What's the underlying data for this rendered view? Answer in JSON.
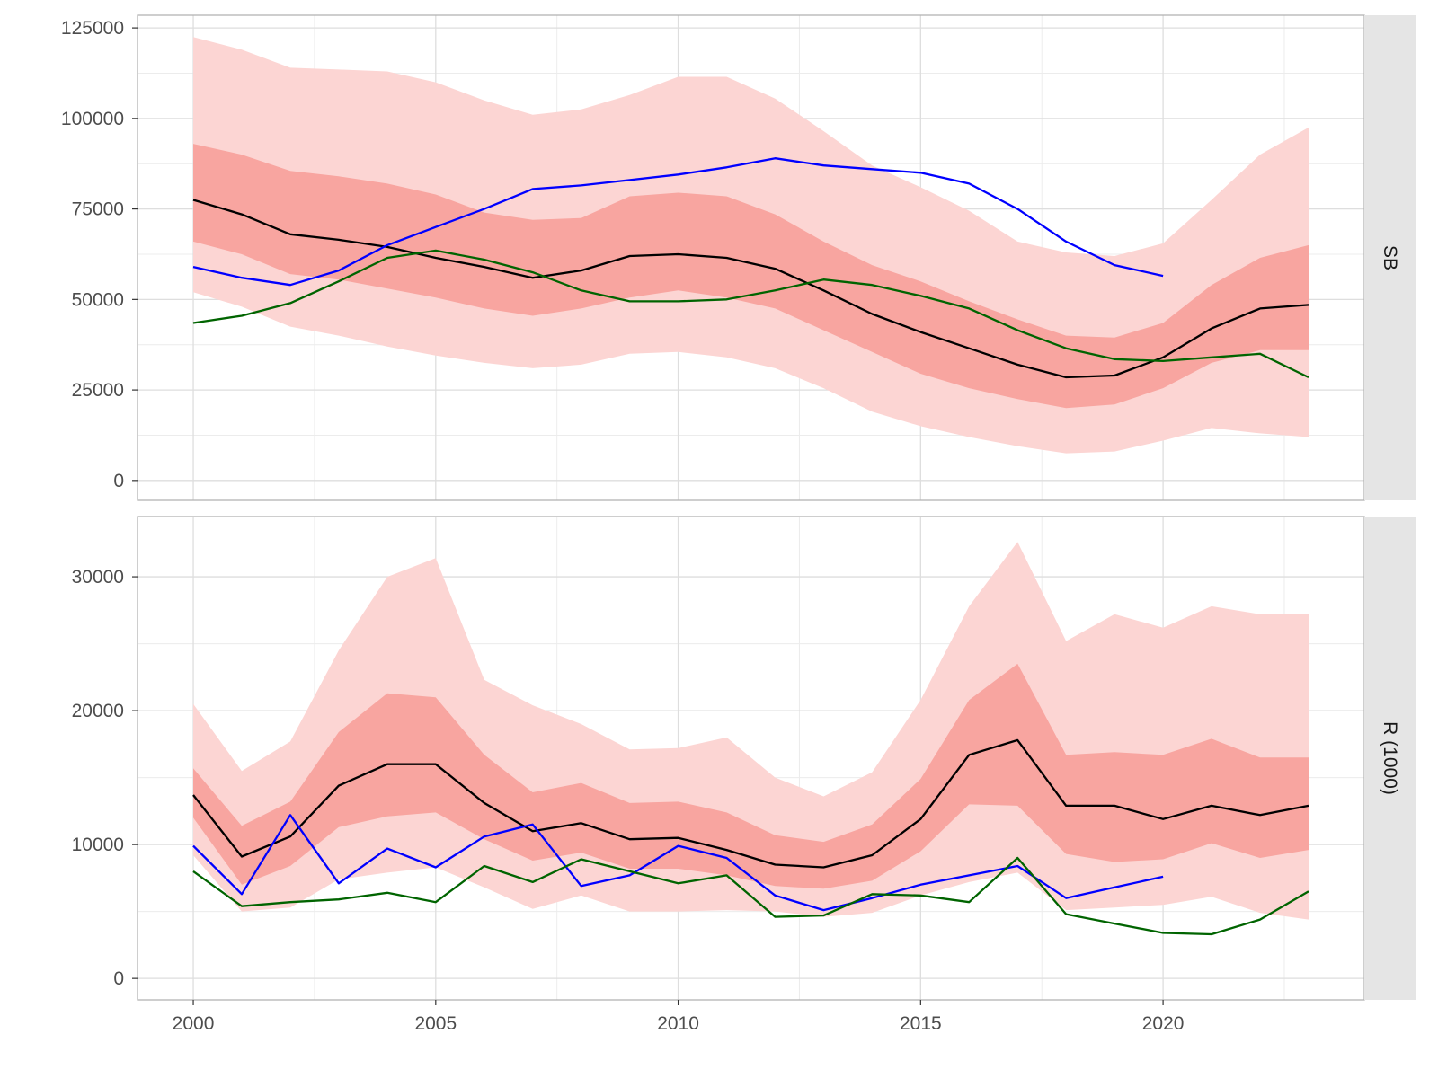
{
  "chart_data": {
    "type": "line",
    "layout": "faceted-vertical",
    "shared_x": {
      "xlim": [
        1998.85,
        2024.15
      ],
      "ticks": [
        2000,
        2005,
        2010,
        2015,
        2020
      ],
      "tick_labels": [
        "2000",
        "2005",
        "2010",
        "2015",
        "2020"
      ]
    },
    "colors": {
      "outer_band": "#fcd5d3",
      "inner_band": "#f8a5a0",
      "median": "#000000",
      "blue_series": "#0000ff",
      "green_series": "#006400",
      "grid": "#dedede",
      "strip_bg": "#e5e5e5",
      "panel_border": "#b3b3b3"
    },
    "panels": [
      {
        "strip_label": "SB",
        "ylim": [
          -5500,
          128500
        ],
        "y_ticks": [
          0,
          25000,
          50000,
          75000,
          100000,
          125000
        ],
        "y_tick_labels": [
          "0",
          "25000",
          "50000",
          "75000",
          "100000",
          "125000"
        ],
        "x": [
          2000,
          2001,
          2002,
          2003,
          2004,
          2005,
          2006,
          2007,
          2008,
          2009,
          2010,
          2011,
          2012,
          2013,
          2014,
          2015,
          2016,
          2017,
          2018,
          2019,
          2020,
          2021,
          2022,
          2023
        ],
        "outer_lower": [
          52000,
          48000,
          42500,
          40000,
          37000,
          34500,
          32500,
          31000,
          32000,
          35000,
          35500,
          34000,
          31000,
          25500,
          19000,
          15000,
          12000,
          9500,
          7500,
          8000,
          11000,
          14500,
          13000,
          12000
        ],
        "outer_upper": [
          122500,
          119000,
          114000,
          113500,
          113000,
          110000,
          105000,
          101000,
          102500,
          106500,
          111500,
          111500,
          105500,
          96500,
          87000,
          81000,
          74500,
          66000,
          63000,
          62000,
          65500,
          77500,
          90000,
          97500
        ],
        "inner_lower": [
          66000,
          62500,
          57000,
          55500,
          53000,
          50500,
          47500,
          45500,
          47500,
          50500,
          52500,
          50500,
          47500,
          41500,
          35500,
          29500,
          25500,
          22500,
          20000,
          21000,
          25500,
          32500,
          36000,
          36000
        ],
        "inner_upper": [
          93000,
          90000,
          85500,
          84000,
          82000,
          79000,
          74000,
          72000,
          72500,
          78500,
          79500,
          78500,
          73500,
          66000,
          59500,
          55000,
          49500,
          44500,
          40000,
          39500,
          43500,
          54000,
          61500,
          65000
        ],
        "series": [
          {
            "color_key": "median",
            "values": [
              77500,
              73500,
              68000,
              66500,
              64500,
              61500,
              59000,
              56000,
              58000,
              62000,
              62500,
              61500,
              58500,
              52500,
              46000,
              41000,
              36500,
              32000,
              28500,
              29000,
              34000,
              42000,
              47500,
              48500
            ]
          },
          {
            "color_key": "blue_series",
            "values": [
              59000,
              56000,
              54000,
              58000,
              65000,
              70000,
              75000,
              80500,
              81500,
              83000,
              84500,
              86500,
              89000,
              87000,
              86000,
              85000,
              82000,
              75000,
              66000,
              59500,
              56500,
              null,
              null,
              null
            ]
          },
          {
            "color_key": "green_series",
            "values": [
              43500,
              45500,
              49000,
              55000,
              61500,
              63500,
              61000,
              57500,
              52500,
              49500,
              49500,
              50000,
              52500,
              55500,
              54000,
              51000,
              47500,
              41500,
              36500,
              33500,
              33000,
              34000,
              35000,
              28500
            ]
          }
        ]
      },
      {
        "strip_label": "R (1000)",
        "ylim": [
          -1600,
          34500
        ],
        "y_ticks": [
          0,
          10000,
          20000,
          30000
        ],
        "y_tick_labels": [
          "0",
          "10000",
          "20000",
          "30000"
        ],
        "x": [
          2000,
          2001,
          2002,
          2003,
          2004,
          2005,
          2006,
          2007,
          2008,
          2009,
          2010,
          2011,
          2012,
          2013,
          2014,
          2015,
          2016,
          2017,
          2018,
          2019,
          2020,
          2021,
          2022,
          2023
        ],
        "outer_lower": [
          9200,
          5000,
          5300,
          7400,
          7900,
          8300,
          6800,
          5200,
          6200,
          5000,
          5000,
          5100,
          5000,
          4600,
          4900,
          6200,
          7200,
          7900,
          5100,
          5300,
          5500,
          6100,
          4900,
          4400
        ],
        "outer_upper": [
          20500,
          15500,
          17700,
          24500,
          30000,
          31400,
          22300,
          20400,
          19000,
          17100,
          17200,
          18000,
          15000,
          13600,
          15400,
          20800,
          27800,
          32600,
          25200,
          27200,
          26200,
          27800,
          27200,
          27200
        ],
        "inner_lower": [
          12000,
          7000,
          8400,
          11300,
          12100,
          12400,
          10400,
          8800,
          9400,
          8200,
          8200,
          7700,
          6900,
          6700,
          7300,
          9500,
          13000,
          12900,
          9300,
          8700,
          8900,
          10100,
          9000,
          9600
        ],
        "inner_upper": [
          15700,
          11400,
          13200,
          18400,
          21300,
          21000,
          16700,
          13900,
          14600,
          13100,
          13200,
          12400,
          10700,
          10200,
          11500,
          14900,
          20800,
          23500,
          16700,
          16900,
          16700,
          17900,
          16500,
          16500
        ],
        "series": [
          {
            "color_key": "median",
            "values": [
              13700,
              9100,
              10600,
              14400,
              16000,
              16000,
              13100,
              11000,
              11600,
              10400,
              10500,
              9600,
              8500,
              8300,
              9200,
              11900,
              16700,
              17800,
              12900,
              12900,
              11900,
              12900,
              12200,
              12900
            ]
          },
          {
            "color_key": "blue_series",
            "values": [
              9900,
              6300,
              12200,
              7100,
              9700,
              8300,
              10600,
              11500,
              6900,
              7700,
              9900,
              9000,
              6200,
              5100,
              6000,
              7000,
              7700,
              8400,
              6000,
              6800,
              7600,
              null,
              null,
              null
            ]
          },
          {
            "color_key": "green_series",
            "values": [
              8000,
              5400,
              5700,
              5900,
              6400,
              5700,
              8400,
              7200,
              8900,
              8000,
              7100,
              7700,
              4600,
              4700,
              6300,
              6200,
              5700,
              9000,
              4800,
              4100,
              3400,
              3300,
              4400,
              6500
            ]
          }
        ]
      }
    ]
  }
}
